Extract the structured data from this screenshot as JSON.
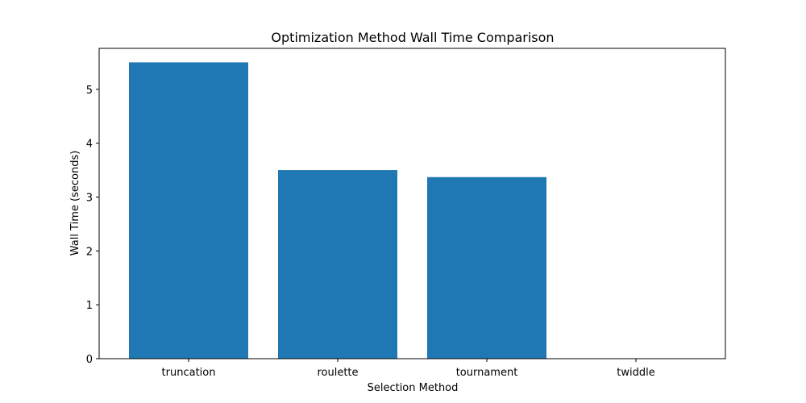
{
  "chart_data": {
    "type": "bar",
    "title": "Optimization Method Wall Time Comparison",
    "xlabel": "Selection Method",
    "ylabel": "Wall Time (seconds)",
    "categories": [
      "truncation",
      "roulette",
      "tournament",
      "twiddle"
    ],
    "values": [
      5.5,
      3.5,
      3.37,
      0
    ],
    "ylim": [
      0,
      5.76
    ],
    "yticks": [
      0,
      1,
      2,
      3,
      4,
      5
    ],
    "bar_color": "#1f77b4",
    "grid": false,
    "legend": "none"
  }
}
